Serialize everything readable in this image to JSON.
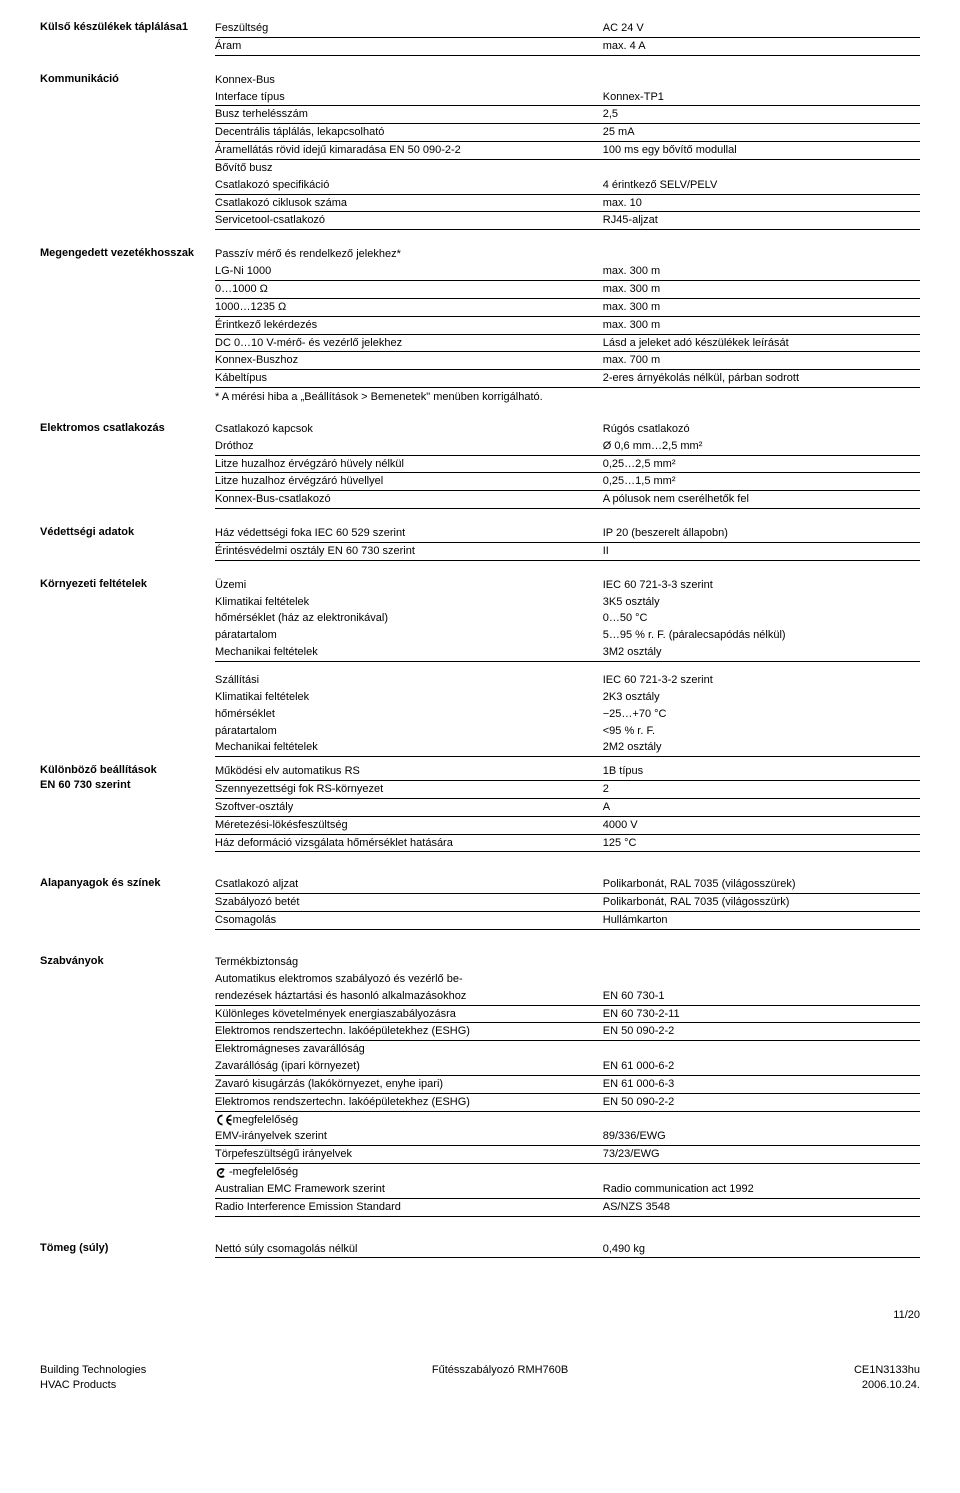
{
  "sections": {
    "power": {
      "title": "Külső készülékek táplálása1",
      "rows": [
        {
          "label": "Feszültség",
          "value": "AC 24 V"
        },
        {
          "label": "Áram",
          "value": "max. 4 A"
        }
      ]
    },
    "comm": {
      "title": "Kommunikáció",
      "rows": [
        {
          "label": "Konnex-Bus",
          "value": "",
          "nob": true
        },
        {
          "label": "Interface típus",
          "value": "Konnex-TP1",
          "indent": 1
        },
        {
          "label": "Busz terhelésszám",
          "value": "2,5",
          "indent": 1
        },
        {
          "label": "Decentrális táplálás, lekapcsolható",
          "value": "25 mA",
          "indent": 1
        },
        {
          "label": "Áramellátás rövid idejű kimaradása EN 50 090-2-2",
          "value": "100 ms egy bővítő modullal",
          "indent": 1
        },
        {
          "label": "Bővítő busz",
          "value": "",
          "nob": true
        },
        {
          "label": "Csatlakozó specifikáció",
          "value": "4 érintkező SELV/PELV",
          "indent": 1
        },
        {
          "label": "Csatlakozó ciklusok száma",
          "value": "max. 10",
          "indent": 1
        },
        {
          "label": "Servicetool-csatlakozó",
          "value": "RJ45-aljzat"
        }
      ]
    },
    "cable": {
      "title": "Megengedett vezetékhosszak",
      "rows": [
        {
          "label": "Passzív mérő és rendelkező jelekhez*",
          "value": "",
          "nob": true
        },
        {
          "label": "LG-Ni 1000",
          "value": "max. 300 m",
          "indent": 1
        },
        {
          "label": "0…1000 Ω",
          "value": "max. 300 m",
          "indent": 1
        },
        {
          "label": "1000…1235 Ω",
          "value": "max. 300 m",
          "indent": 1
        },
        {
          "label": "Érintkező lekérdezés",
          "value": "max. 300 m",
          "indent": 1
        },
        {
          "label": "DC 0…10 V-mérő- és vezérlő jelekhez",
          "value": "Lásd a jeleket adó készülékek leírását"
        },
        {
          "label": "Konnex-Buszhoz",
          "value": "max. 700 m"
        },
        {
          "label": "Kábeltípus",
          "value": "2-eres árnyékolás nélkül, párban sodrott"
        }
      ],
      "footnote": "* A mérési hiba a „Beállítások > Bemenetek\" menüben korrigálható."
    },
    "elec": {
      "title": "Elektromos csatlakozás",
      "rows": [
        {
          "label": "Csatlakozó kapcsok",
          "value": "Rúgós csatlakozó",
          "nob": true
        },
        {
          "label": "Dróthoz",
          "value": "Ø 0,6 mm…2,5 mm²",
          "indent": 1
        },
        {
          "label": "Litze huzalhoz érvégzáró hüvely nélkül",
          "value": "0,25…2,5 mm²",
          "indent": 1
        },
        {
          "label": "Litze huzalhoz érvégzáró hüvellyel",
          "value": "0,25…1,5 mm²",
          "indent": 1
        },
        {
          "label": "Konnex-Bus-csatlakozó",
          "value": "A pólusok nem cserélhetők fel"
        }
      ]
    },
    "prot": {
      "title": "Védettségi adatok",
      "rows": [
        {
          "label": "Ház védettségi foka IEC 60 529 szerint",
          "value": "IP 20 (beszerelt állapobn)"
        },
        {
          "label": "Érintésvédelmi osztály EN 60 730 szerint",
          "value": "II"
        }
      ]
    },
    "env": {
      "title": "Környezeti feltételek",
      "rows": [
        {
          "label": "Üzemi",
          "value": "IEC 60 721-3-3 szerint",
          "nob": true
        },
        {
          "label": "Klimatikai feltételek",
          "value": "3K5 osztály",
          "indent": 1,
          "nob": true
        },
        {
          "label": "hőmérséklet (ház az elektronikával)",
          "value": "0…50 °C",
          "indent": 2,
          "nob": true
        },
        {
          "label": "páratartalom",
          "value": "5…95 % r. F. (páralecsapódás nélkül)",
          "indent": 2,
          "nob": true
        },
        {
          "label": "Mechanikai feltételek",
          "value": "3M2 osztály",
          "indent": 1
        }
      ],
      "rows2": [
        {
          "label": "Szállítási",
          "value": "IEC 60 721-3-2 szerint",
          "nob": true
        },
        {
          "label": "Klimatikai feltételek",
          "value": "2K3 osztály",
          "indent": 1,
          "nob": true
        },
        {
          "label": "hőmérséklet",
          "value": "−25…+70 °C",
          "indent": 2,
          "nob": true
        },
        {
          "label": "páratartalom",
          "value": "<95 % r. F.",
          "indent": 2,
          "nob": true
        },
        {
          "label": "Mechanikai feltételek",
          "value": "2M2 osztály",
          "indent": 1
        }
      ]
    },
    "settings": {
      "title": "Különböző beállítások\nEN 60 730 szerint",
      "rows": [
        {
          "label": "Működési elv automatikus RS",
          "value": "1B típus"
        },
        {
          "label": "Szennyezettségi fok RS-környezet",
          "value": "2"
        },
        {
          "label": "Szoftver-osztály",
          "value": "A"
        },
        {
          "label": "Méretezési-lökésfeszültség",
          "value": "4000 V"
        },
        {
          "label": "Ház deformáció vizsgálata hőmérséklet hatására",
          "value": "125 °C"
        }
      ]
    },
    "materials": {
      "title": "Alapanyagok és színek",
      "rows": [
        {
          "label": "Csatlakozó aljzat",
          "value": "Polikarbonát, RAL 7035 (világosszürek)"
        },
        {
          "label": "Szabályozó betét",
          "value": "Polikarbonát, RAL 7035 (világosszürk)"
        },
        {
          "label": "Csomagolás",
          "value": "Hullámkarton"
        }
      ]
    },
    "standards": {
      "title": "Szabványok",
      "rows": [
        {
          "label": "Termékbiztonság",
          "value": "",
          "nob": true
        },
        {
          "label": "Automatikus elektromos szabályozó és vezérlő be-",
          "value": "",
          "indent": 1,
          "nob": true
        },
        {
          "label": "rendezések háztartási és hasonló alkalmazásokhoz",
          "value": "EN 60 730-1",
          "indent": 1
        },
        {
          "label": "Különleges követelmények energiaszabályozásra",
          "value": "EN 60 730-2-11",
          "indent": 1
        },
        {
          "label": "Elektromos rendszertechn. lakóépületekhez (ESHG)",
          "value": "EN 50 090-2-2",
          "indent": 1
        },
        {
          "label": "Elektromágneses zavarállóság",
          "value": "",
          "nob": true
        },
        {
          "label": "Zavarállóság (ipari környezet)",
          "value": "EN 61 000-6-2",
          "indent": 1
        },
        {
          "label": "Zavaró kisugárzás (lakókörnyezet, enyhe ipari)",
          "value": "EN 61 000-6-3",
          "indent": 1
        },
        {
          "label": "Elektromos rendszertechn. lakóépületekhez (ESHG)",
          "value": "EN 50 090-2-2",
          "indent": 1
        }
      ],
      "ce_label": "-megfelelőség",
      "ce_rows": [
        {
          "label": "EMV-irányelvek szerint",
          "value": "89/336/EWG",
          "indent": 1
        },
        {
          "label": "Törpefeszültségű irányelvek",
          "value": "73/23/EWG",
          "indent": 1
        }
      ],
      "ctick_label": "-megfelelőség",
      "ctick_rows": [
        {
          "label": "Australian EMC Framework szerint",
          "value": "Radio communication act 1992",
          "indent": 1
        },
        {
          "label": "Radio Interference Emission Standard",
          "value": "AS/NZS 3548",
          "indent": 1
        }
      ]
    },
    "weight": {
      "title": "Tömeg (súly)",
      "rows": [
        {
          "label": "Nettó súly csomagolás nélkül",
          "value": "0,490 kg"
        }
      ]
    }
  },
  "footer": {
    "page": "11/20",
    "left1": "Building Technologies",
    "left2": "HVAC Products",
    "center": "Fűtésszabályozó RMH760B",
    "right1": "CE1N3133hu",
    "right2": "2006.10.24."
  }
}
